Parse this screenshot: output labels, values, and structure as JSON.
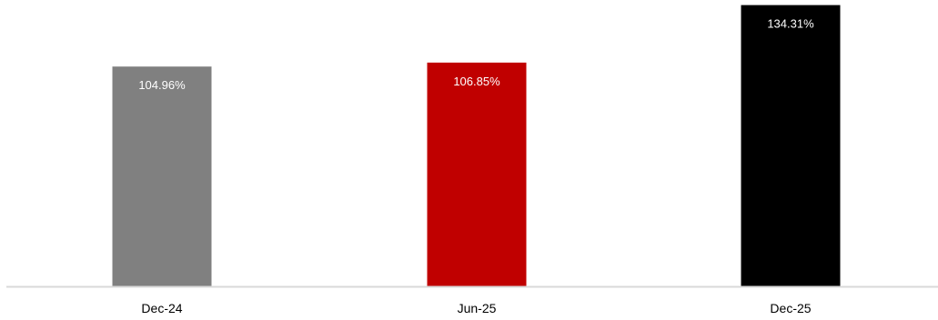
{
  "chart_data": {
    "type": "bar",
    "categories": [
      "Dec-24",
      "Jun-25",
      "Dec-25"
    ],
    "values": [
      104.96,
      106.85,
      134.31
    ],
    "data_labels": [
      "104.96%",
      "106.85%",
      "134.31%"
    ],
    "bar_colors": [
      "#808080",
      "#c00000",
      "#000000"
    ],
    "data_label_color": "#ffffff",
    "axis_color": "#d9d9d9",
    "ylim": [
      0,
      135
    ],
    "grid": false,
    "legend": "none",
    "title": "",
    "xlabel": "",
    "ylabel": ""
  }
}
